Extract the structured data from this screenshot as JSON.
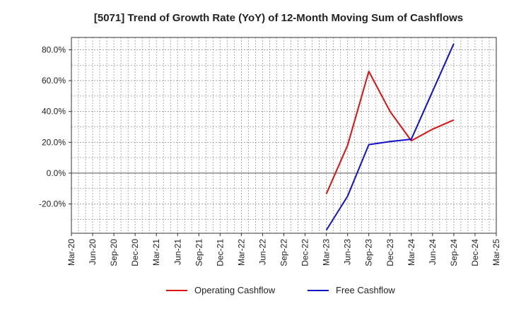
{
  "chart_data": {
    "type": "line",
    "title": "[5071]  Trend of Growth Rate (YoY) of 12-Month Moving Sum of Cashflows",
    "xlabel": "",
    "ylabel": "",
    "x_ticks": [
      "Mar-20",
      "Jun-20",
      "Sep-20",
      "Dec-20",
      "Mar-21",
      "Jun-21",
      "Sep-21",
      "Dec-21",
      "Mar-22",
      "Jun-22",
      "Sep-22",
      "Dec-22",
      "Mar-23",
      "Jun-23",
      "Sep-23",
      "Dec-23",
      "Mar-24",
      "Jun-24",
      "Sep-24",
      "Dec-24",
      "Mar-25"
    ],
    "y_ticks": [
      {
        "value": 80,
        "label": "80.0%"
      },
      {
        "value": 60,
        "label": "60.0%"
      },
      {
        "value": 40,
        "label": "40.0%"
      },
      {
        "value": 20,
        "label": "20.0%"
      },
      {
        "value": 0,
        "label": "0.0%"
      },
      {
        "value": -20,
        "label": "-20.0%"
      }
    ],
    "ylim": [
      -39,
      88
    ],
    "grid": true,
    "legend_position": "bottom",
    "series": [
      {
        "name": "Operating Cashflow",
        "color": "#dd1111",
        "points": [
          {
            "x": "Mar-23",
            "y": -13.5
          },
          {
            "x": "Jun-23",
            "y": 18.0
          },
          {
            "x": "Sep-23",
            "y": 66.0
          },
          {
            "x": "Dec-23",
            "y": 40.0
          },
          {
            "x": "Mar-24",
            "y": 21.0
          },
          {
            "x": "Jun-24",
            "y": 28.5
          },
          {
            "x": "Sep-24",
            "y": 34.5
          }
        ]
      },
      {
        "name": "Free Cashflow",
        "color": "#1111cc",
        "points": [
          {
            "x": "Mar-23",
            "y": -37.0
          },
          {
            "x": "Jun-23",
            "y": -15.0
          },
          {
            "x": "Sep-23",
            "y": 18.5
          },
          {
            "x": "Dec-23",
            "y": 20.5
          },
          {
            "x": "Mar-24",
            "y": 22.0
          },
          {
            "x": "Jun-24",
            "y": 53.0
          },
          {
            "x": "Sep-24",
            "y": 84.0
          }
        ]
      }
    ]
  }
}
